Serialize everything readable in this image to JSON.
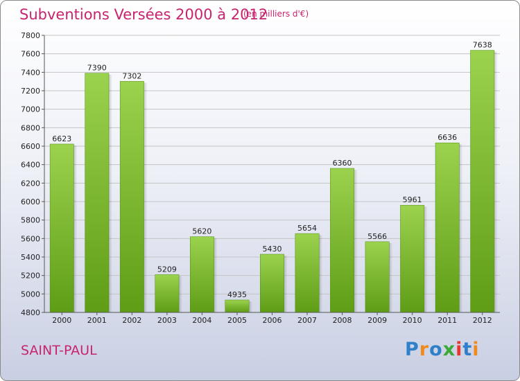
{
  "title": "Subventions Versées 2000 à 2012",
  "subtitle": "(en milliers d'€)",
  "commune": "SAINT-PAUL",
  "logo": {
    "text": "Proxiti",
    "letters": [
      {
        "char": "P",
        "color": "#2f7fc9"
      },
      {
        "char": "r",
        "color": "#f08a1c"
      },
      {
        "char": "o",
        "color": "#2f7fc9"
      },
      {
        "char": "x",
        "color": "#3aaa35"
      },
      {
        "char": "i",
        "color": "#e8352e"
      },
      {
        "char": "t",
        "color": "#2f7fc9"
      },
      {
        "char": "i",
        "color": "#f08a1c"
      }
    ]
  },
  "colors": {
    "title": "#c8236e",
    "bar_top": "#9bd24e",
    "bar_bottom": "#5f9d16"
  },
  "chart_data": {
    "type": "bar",
    "categories": [
      "2000",
      "2001",
      "2002",
      "2003",
      "2004",
      "2005",
      "2006",
      "2007",
      "2008",
      "2009",
      "2010",
      "2011",
      "2012"
    ],
    "values": [
      6623,
      7390,
      7302,
      5209,
      5620,
      4935,
      5430,
      5654,
      6360,
      5566,
      5961,
      6636,
      7638
    ],
    "title": "Subventions Versées 2000 à 2012",
    "xlabel": "",
    "ylabel": "",
    "ylim": [
      4800,
      7800
    ],
    "yticks": [
      4800,
      5000,
      5200,
      5400,
      5600,
      5800,
      6000,
      6200,
      6400,
      6600,
      6800,
      7000,
      7200,
      7400,
      7600,
      7800
    ],
    "grid": true,
    "data_labels": true
  }
}
